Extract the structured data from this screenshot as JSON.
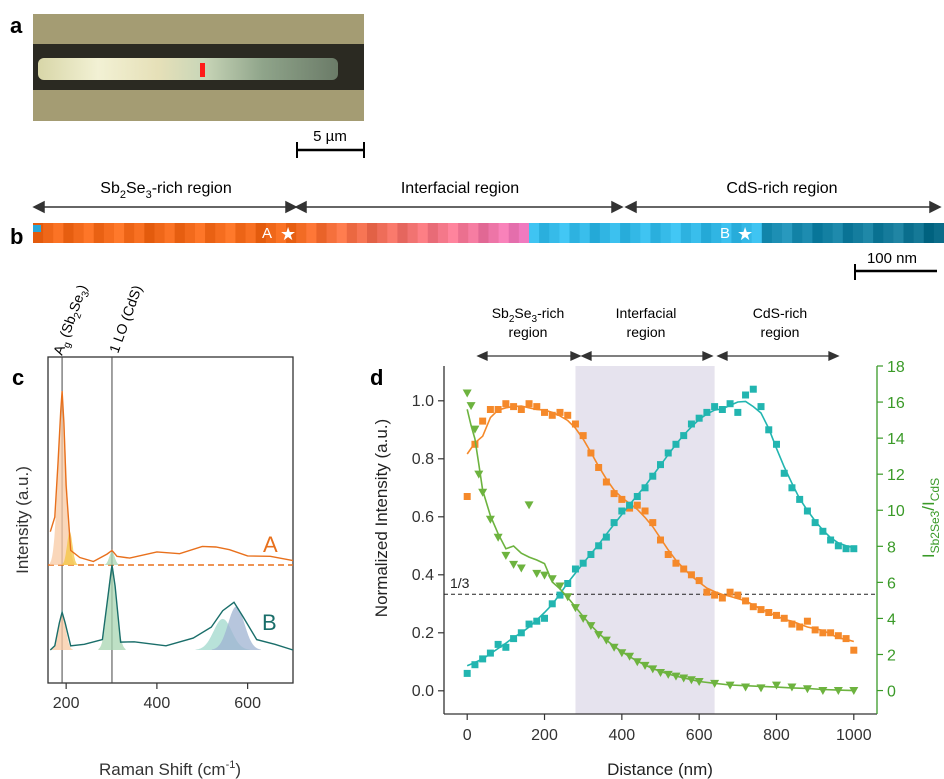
{
  "panel_labels": {
    "a": "a",
    "b": "b",
    "c": "c",
    "d": "d"
  },
  "panel_a": {
    "scale_bar": "5 µm",
    "image_description_colors": {
      "background": "#a49c73",
      "wire": "#2b2a22"
    }
  },
  "panel_b": {
    "regions": [
      "Sb2Se3-rich region",
      "Interfacial region",
      "CdS-rich region"
    ],
    "region_label_parts": [
      {
        "pre": "Sb",
        "sub1": "2",
        "mid": "Se",
        "sub2": "3",
        "post": "-rich region"
      },
      {
        "pre": "Interfacial region"
      },
      {
        "pre": "CdS-rich region"
      }
    ],
    "point_labels": [
      "A",
      "B"
    ],
    "scale_bar": "100 nm",
    "strip_colors": [
      "#f26a1c",
      "#f65e8c",
      "#f07bc6",
      "#33b8e6",
      "#1b8fb5",
      "#0e6f8c"
    ]
  },
  "chart_data": [
    {
      "panel": "c",
      "type": "line",
      "xlabel": "Raman Shift (cm-1)",
      "ylabel": "Intensity (a.u.)",
      "xlim": [
        160,
        700
      ],
      "xticks": [
        200,
        400,
        600
      ],
      "peak_labels": [
        "Ag (Sb2Se3)",
        "1 LO (CdS)"
      ],
      "peak_positions": [
        191,
        301
      ],
      "series": [
        {
          "name": "A",
          "color": "#e8701c",
          "x": [
            165,
            175,
            182,
            188,
            191,
            195,
            200,
            210,
            230,
            260,
            290,
            301,
            312,
            340,
            400,
            450,
            500,
            530,
            560,
            600,
            650,
            700
          ],
          "y": [
            0.3,
            0.45,
            0.9,
            1.4,
            1.55,
            1.3,
            0.7,
            0.15,
            0.05,
            0.05,
            0.08,
            0.15,
            0.06,
            0.08,
            0.1,
            0.12,
            0.15,
            0.18,
            0.12,
            0.1,
            0.06,
            0.04
          ]
        },
        {
          "name": "B",
          "color": "#1a6e6a",
          "x": [
            165,
            175,
            185,
            191,
            198,
            210,
            240,
            280,
            295,
            301,
            308,
            320,
            350,
            420,
            480,
            520,
            545,
            570,
            590,
            620,
            660,
            700
          ],
          "y": [
            0.0,
            0.05,
            0.2,
            0.32,
            0.2,
            0.05,
            0.03,
            0.1,
            0.5,
            0.7,
            0.5,
            0.08,
            0.05,
            0.05,
            0.08,
            0.2,
            0.3,
            0.4,
            0.25,
            0.1,
            0.03,
            0.0
          ]
        }
      ],
      "fill_colors": [
        "#f8c9a3",
        "#f4c542",
        "#a8d6b2",
        "#9fb3d1",
        "#a0d8cc"
      ]
    },
    {
      "panel": "d",
      "type": "scatter",
      "xlabel": "Distance (nm)",
      "ylabel": "Normalized Intensity (a.u.)",
      "y2label": "I Sb2Se3 / I CdS",
      "xlim": [
        -60,
        1060
      ],
      "ylim": [
        -0.08,
        1.12
      ],
      "y2lim": [
        -1.3,
        18
      ],
      "xticks": [
        0,
        200,
        400,
        600,
        800,
        1000
      ],
      "yticks": [
        0.0,
        0.2,
        0.4,
        0.6,
        0.8,
        1.0
      ],
      "y2ticks": [
        0,
        2,
        4,
        6,
        8,
        10,
        12,
        14,
        16,
        18
      ],
      "regions": [
        "Sb2Se3-rich region",
        "Interfacial region",
        "CdS-rich region"
      ],
      "shaded_region": [
        280,
        640
      ],
      "reference_line": {
        "y": 0.333,
        "label": "1/3"
      },
      "series": [
        {
          "name": "Sb2Se3",
          "color": "#f5892a",
          "marker": "square",
          "axis": "left",
          "x": [
            0,
            20,
            40,
            60,
            80,
            100,
            120,
            140,
            160,
            180,
            200,
            220,
            240,
            260,
            280,
            300,
            320,
            340,
            360,
            380,
            400,
            420,
            440,
            460,
            480,
            500,
            520,
            540,
            560,
            580,
            600,
            620,
            640,
            660,
            680,
            700,
            720,
            740,
            760,
            780,
            800,
            820,
            840,
            860,
            880,
            900,
            920,
            940,
            960,
            980,
            1000
          ],
          "y": [
            0.67,
            0.85,
            0.93,
            0.97,
            0.97,
            0.99,
            0.98,
            0.97,
            0.99,
            0.98,
            0.96,
            0.95,
            0.96,
            0.95,
            0.92,
            0.88,
            0.82,
            0.77,
            0.72,
            0.68,
            0.66,
            0.63,
            0.64,
            0.62,
            0.58,
            0.52,
            0.47,
            0.44,
            0.42,
            0.4,
            0.38,
            0.34,
            0.33,
            0.32,
            0.34,
            0.33,
            0.31,
            0.29,
            0.28,
            0.27,
            0.26,
            0.25,
            0.23,
            0.22,
            0.24,
            0.21,
            0.2,
            0.2,
            0.19,
            0.18,
            0.14
          ]
        },
        {
          "name": "CdS",
          "color": "#22b5b0",
          "marker": "square",
          "axis": "left",
          "x": [
            0,
            20,
            40,
            60,
            80,
            100,
            120,
            140,
            160,
            180,
            200,
            220,
            240,
            260,
            280,
            300,
            320,
            340,
            360,
            380,
            400,
            420,
            440,
            460,
            480,
            500,
            520,
            540,
            560,
            580,
            600,
            620,
            640,
            660,
            680,
            700,
            720,
            740,
            760,
            780,
            800,
            820,
            840,
            860,
            880,
            900,
            920,
            940,
            960,
            980,
            1000
          ],
          "y": [
            0.06,
            0.09,
            0.11,
            0.13,
            0.16,
            0.15,
            0.18,
            0.2,
            0.23,
            0.24,
            0.25,
            0.3,
            0.33,
            0.37,
            0.42,
            0.44,
            0.47,
            0.5,
            0.53,
            0.58,
            0.62,
            0.64,
            0.67,
            0.7,
            0.74,
            0.78,
            0.82,
            0.85,
            0.88,
            0.92,
            0.94,
            0.96,
            0.98,
            0.97,
            0.99,
            0.96,
            1.02,
            1.04,
            0.98,
            0.9,
            0.85,
            0.75,
            0.7,
            0.66,
            0.62,
            0.58,
            0.55,
            0.52,
            0.5,
            0.49,
            0.49
          ]
        },
        {
          "name": "Ratio",
          "color": "#6db33f",
          "marker": "triangle-down",
          "axis": "right",
          "x": [
            0,
            10,
            20,
            30,
            40,
            60,
            80,
            100,
            120,
            140,
            160,
            180,
            200,
            220,
            240,
            260,
            280,
            300,
            320,
            340,
            360,
            380,
            400,
            420,
            440,
            460,
            480,
            500,
            520,
            540,
            560,
            580,
            600,
            640,
            680,
            720,
            760,
            800,
            840,
            880,
            920,
            960,
            1000
          ],
          "y": [
            16.5,
            15.8,
            14.5,
            12.0,
            11.0,
            9.5,
            8.5,
            7.5,
            7.0,
            6.8,
            10.3,
            6.5,
            6.4,
            6.2,
            5.8,
            5.2,
            4.6,
            4.0,
            3.6,
            3.1,
            2.8,
            2.4,
            2.1,
            1.9,
            1.6,
            1.4,
            1.2,
            1.0,
            0.9,
            0.8,
            0.7,
            0.6,
            0.5,
            0.4,
            0.3,
            0.2,
            0.15,
            0.3,
            0.2,
            0.1,
            0.0,
            0.0,
            0.0
          ]
        }
      ]
    }
  ]
}
